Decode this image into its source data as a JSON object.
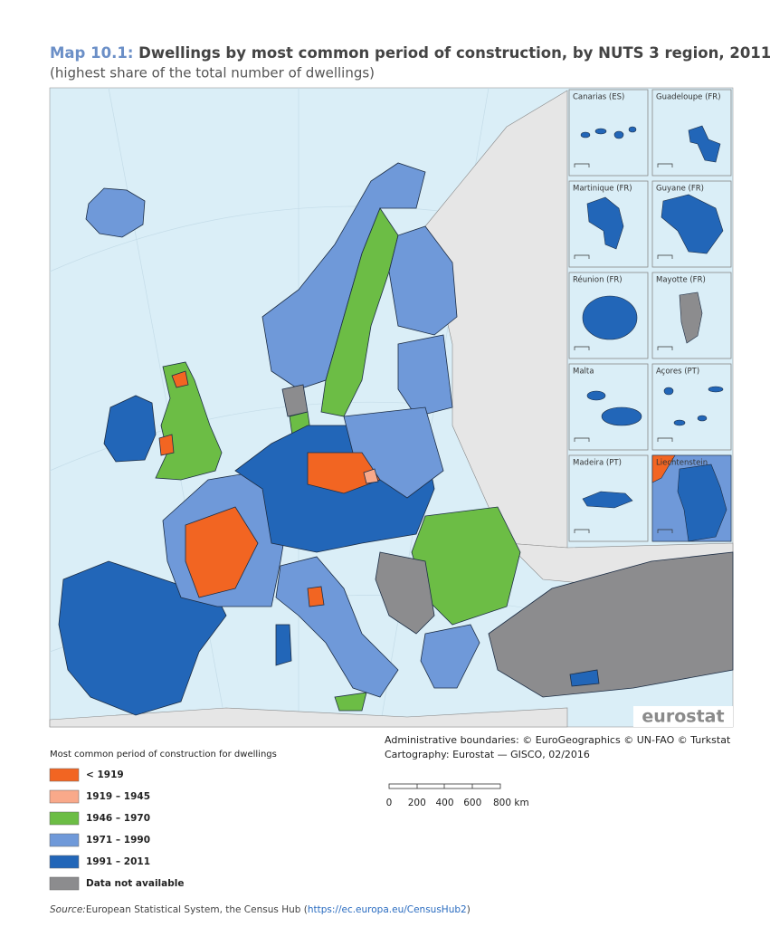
{
  "header": {
    "title_prefix": "Map 10.1:",
    "title": "Dwellings by most common period of construction, by NUTS 3 region, 2011",
    "subtitle": "(highest share of the total number of dwellings)"
  },
  "insets": [
    {
      "label": "Canarias (ES)"
    },
    {
      "label": "Guadeloupe (FR)"
    },
    {
      "label": "Martinique (FR)"
    },
    {
      "label": "Guyane (FR)"
    },
    {
      "label": "Réunion (FR)"
    },
    {
      "label": "Mayotte (FR)"
    },
    {
      "label": "Malta"
    },
    {
      "label": "Açores (PT)"
    },
    {
      "label": "Madeira (PT)"
    },
    {
      "label": "Liechtenstein"
    }
  ],
  "logo": "eurostat",
  "legend": {
    "title": "Most common period of construction for dwellings",
    "items": [
      {
        "label": "< 1919",
        "color": "#f26522"
      },
      {
        "label": "1919 – 1945",
        "color": "#f9a98a"
      },
      {
        "label": "1946 – 1970",
        "color": "#6cbd45"
      },
      {
        "label": "1971 – 1990",
        "color": "#6f99d9"
      },
      {
        "label": "1991 – 2011",
        "color": "#2266b8"
      },
      {
        "label": "Data not available",
        "color": "#8c8c8e"
      }
    ]
  },
  "credits": [
    "Administrative boundaries: © EuroGeographics © UN-FAO © Turkstat",
    "Cartography: Eurostat — GISCO, 02/2016"
  ],
  "scale_bar": {
    "ticks": [
      "0",
      "200",
      "400",
      "600",
      "800 km"
    ]
  },
  "source": {
    "prefix": "Source:",
    "text": "European Statistical System, the Census Hub (",
    "link": "https://ec.europa.eu/CensusHub2",
    "suffix": ")"
  }
}
